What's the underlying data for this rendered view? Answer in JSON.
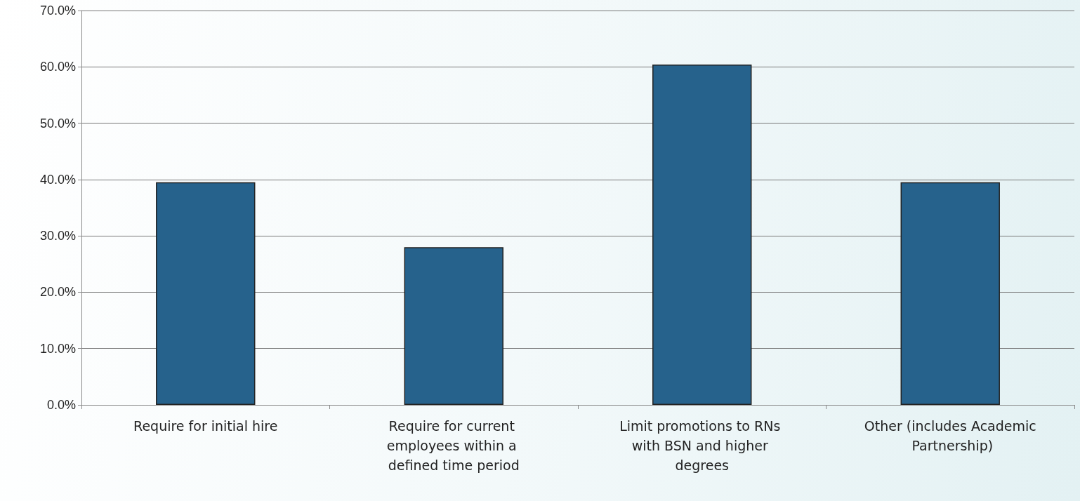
{
  "chart_data": {
    "type": "bar",
    "categories": [
      "Require for initial hire",
      "Require for current employees within a defined time period",
      "Limit promotions to RNs with BSN and higher degrees",
      "Other (includes Academic Partnership)"
    ],
    "values": [
      39.5,
      28.0,
      60.4,
      39.5
    ],
    "color": "#26628c",
    "ylim": [
      0,
      70
    ],
    "yticks": [
      {
        "value": 0,
        "label": "0.0%"
      },
      {
        "value": 10,
        "label": "10.0%"
      },
      {
        "value": 20,
        "label": "20.0%"
      },
      {
        "value": 30,
        "label": "30.0%"
      },
      {
        "value": 40,
        "label": "40.0%"
      },
      {
        "value": 50,
        "label": "50.0%"
      },
      {
        "value": 60,
        "label": "60.0%"
      },
      {
        "value": 70,
        "label": "70.0%"
      }
    ],
    "grid": "y"
  }
}
